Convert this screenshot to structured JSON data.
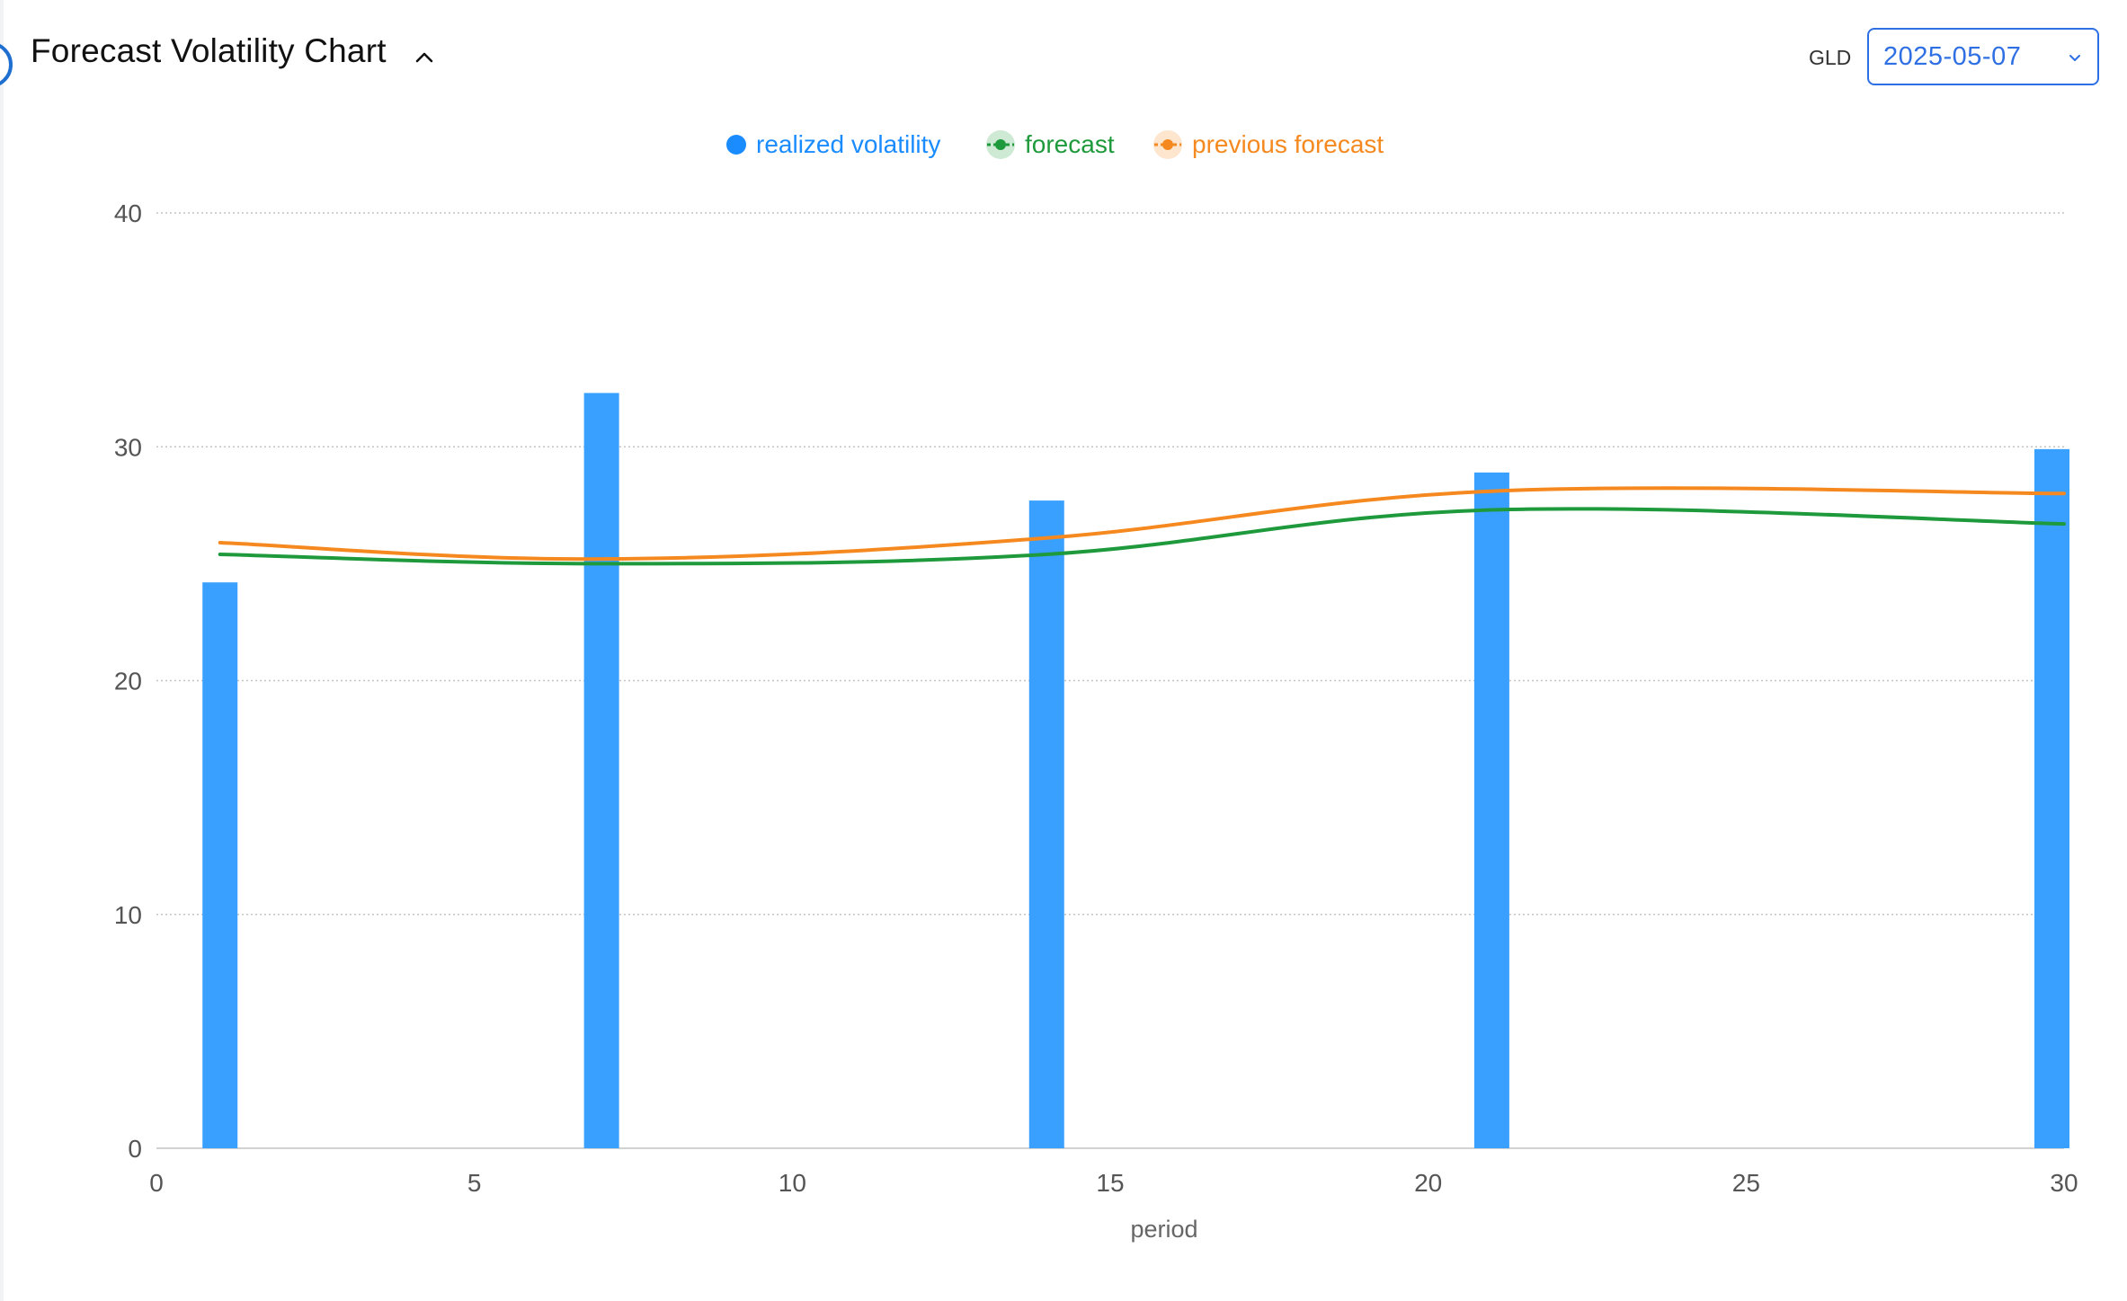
{
  "header": {
    "title": "Forecast Volatility Chart",
    "collapse_icon": "chevron-up-icon",
    "ticker": "GLD",
    "date_select": {
      "value": "2025-05-07",
      "icon": "chevron-down-icon"
    }
  },
  "colors": {
    "realized": "#3aa0ff",
    "forecast": "#1e9a3c",
    "previous_forecast": "#f5891f",
    "accent": "#2f6fe4",
    "grid": "#c8c8c8"
  },
  "legend": [
    {
      "label": "realized volatility",
      "color": "#1a8cff",
      "marker": "dot"
    },
    {
      "label": "forecast",
      "color": "#1e9a3c",
      "marker": "line-dot"
    },
    {
      "label": "previous forecast",
      "color": "#f5891f",
      "marker": "line-dot"
    }
  ],
  "chart_data": {
    "type": "bar",
    "xlabel": "period",
    "ylabel": "",
    "xlim": [
      0,
      30
    ],
    "ylim": [
      0,
      40
    ],
    "xticks": [
      0,
      5,
      10,
      15,
      20,
      25,
      30
    ],
    "yticks": [
      0,
      10,
      20,
      30,
      40
    ],
    "grid": true,
    "legend_position": "top-center",
    "series": [
      {
        "name": "realized volatility",
        "kind": "bar",
        "color": "#3aa0ff",
        "x": [
          1,
          7,
          14,
          21,
          30
        ],
        "values": [
          24.2,
          32.3,
          27.7,
          28.9,
          29.9
        ]
      },
      {
        "name": "forecast",
        "kind": "line",
        "color": "#1e9a3c",
        "x": [
          1,
          7,
          14,
          21,
          30
        ],
        "values": [
          25.4,
          25.0,
          25.4,
          27.3,
          26.7
        ]
      },
      {
        "name": "previous forecast",
        "kind": "line",
        "color": "#f5891f",
        "x": [
          1,
          7,
          14,
          21,
          30
        ],
        "values": [
          25.9,
          25.2,
          26.1,
          28.1,
          28.0
        ]
      }
    ]
  }
}
